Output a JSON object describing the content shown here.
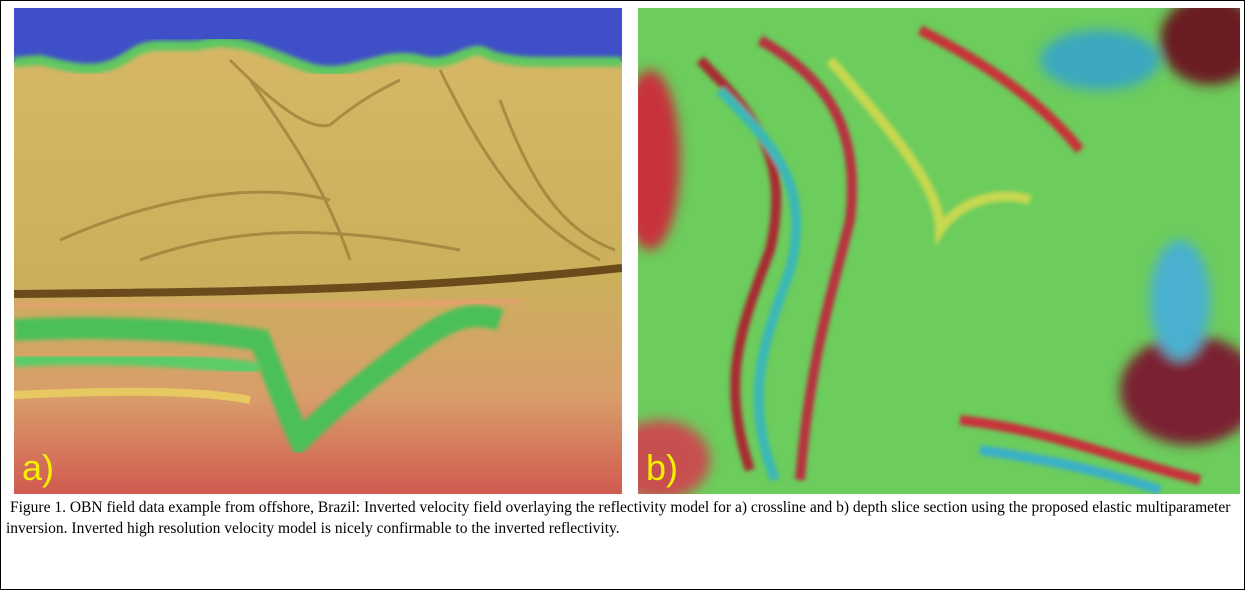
{
  "panels": [
    {
      "label": "a)"
    },
    {
      "label": "b)"
    }
  ],
  "caption": "Figure 1. OBN field data example from offshore, Brazil: Inverted velocity field overlaying the reflectivity model for a) crossline and b) depth slice section using the proposed elastic multiparameter inversion. Inverted high resolution velocity model is nicely confirmable to the inverted reflectivity."
}
